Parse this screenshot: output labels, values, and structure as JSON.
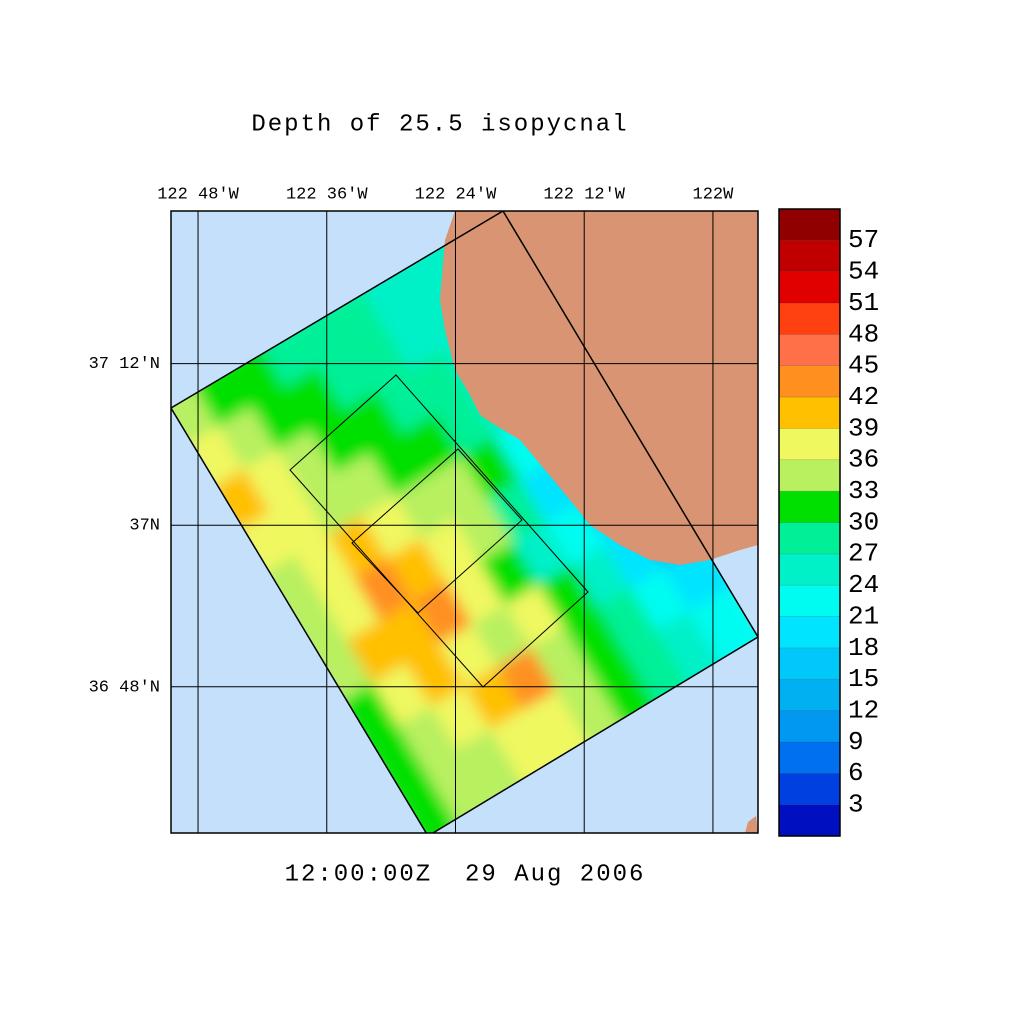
{
  "chart_data": {
    "type": "map",
    "title": "Depth of 25.5 isopycnal",
    "subtitle": "12:00:00Z  29 Aug 2006",
    "xlim": [
      -122.842,
      -121.93
    ],
    "ylim": [
      36.619,
      37.389
    ],
    "xticks": [
      {
        "value": -122.8,
        "label": "122 48'W"
      },
      {
        "value": -122.6,
        "label": "122 36'W"
      },
      {
        "value": -122.4,
        "label": "122 24'W"
      },
      {
        "value": -122.2,
        "label": "122 12'W"
      },
      {
        "value": -122.0,
        "label": "122W"
      }
    ],
    "yticks": [
      {
        "value": 37.2,
        "label": "37 12'N"
      },
      {
        "value": 37.0,
        "label": "37N"
      },
      {
        "value": 36.8,
        "label": "36 48'N"
      }
    ],
    "grid": true,
    "colorbar": {
      "clim": [
        0,
        60
      ],
      "ticks": [
        3,
        6,
        9,
        12,
        15,
        18,
        21,
        24,
        27,
        30,
        33,
        36,
        39,
        42,
        45,
        48,
        51,
        54,
        57
      ],
      "colors": [
        "#0010c0",
        "#0040e0",
        "#0070f0",
        "#0098f0",
        "#00b0f0",
        "#00c8f8",
        "#00e4ff",
        "#00fcf0",
        "#00f0c8",
        "#00f098",
        "#00e000",
        "#b8f060",
        "#f0f860",
        "#ffc000",
        "#ff9020",
        "#ff7048",
        "#ff4010",
        "#e00000",
        "#c00000",
        "#900000"
      ]
    },
    "field": [
      [
        33,
        30,
        30,
        27,
        27,
        27,
        24,
        24,
        24,
        24
      ],
      [
        36,
        33,
        30,
        30,
        27,
        27,
        24,
        24,
        21,
        21
      ],
      [
        39,
        36,
        33,
        30,
        30,
        27,
        27,
        24,
        21,
        18
      ],
      [
        36,
        36,
        33,
        33,
        30,
        30,
        27,
        24,
        18,
        15
      ],
      [
        33,
        36,
        39,
        36,
        33,
        33,
        30,
        21,
        15,
        15
      ],
      [
        33,
        36,
        42,
        39,
        36,
        33,
        27,
        18,
        15,
        12
      ],
      [
        33,
        39,
        39,
        42,
        36,
        30,
        24,
        21,
        18,
        12
      ],
      [
        30,
        36,
        39,
        36,
        33,
        36,
        30,
        24,
        18,
        15
      ],
      [
        30,
        33,
        36,
        39,
        42,
        33,
        30,
        27,
        21,
        18
      ],
      [
        30,
        33,
        33,
        36,
        36,
        33,
        30,
        27,
        24,
        21
      ]
    ]
  }
}
